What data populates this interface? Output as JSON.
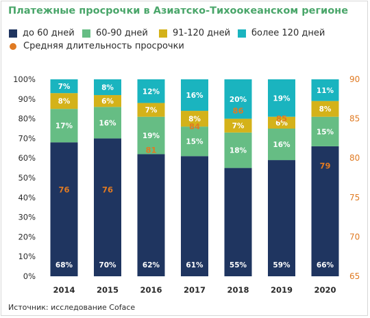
{
  "title": "Платежные просрочки в Азиатско-Тихоокеанском регионе",
  "source": "Источник: исследование Coface",
  "chart_data": {
    "type": "bar",
    "stacked": true,
    "title": "Платежные просрочки в Азиатско-Тихоокеанском регионе",
    "categories": [
      "2014",
      "2015",
      "2016",
      "2017",
      "2018",
      "2019",
      "2020"
    ],
    "series": [
      {
        "name": "до 60 дней",
        "color": "#1f3560",
        "values": [
          68,
          70,
          62,
          61,
          55,
          59,
          66
        ],
        "labels": [
          "68%",
          "70%",
          "62%",
          "61%",
          "55%",
          "59%",
          "66%"
        ]
      },
      {
        "name": "60-90 дней",
        "color": "#66bd84",
        "values": [
          17,
          16,
          19,
          15,
          18,
          16,
          15
        ],
        "labels": [
          "17%",
          "16%",
          "19%",
          "15%",
          "18%",
          "16%",
          "15%"
        ]
      },
      {
        "name": "91-120 дней",
        "color": "#d4b21a",
        "values": [
          8,
          6,
          7,
          8,
          7,
          6,
          8
        ],
        "labels": [
          "8%",
          "6%",
          "7%",
          "8%",
          "7%",
          "6%",
          "8%"
        ]
      },
      {
        "name": "более 120 дней",
        "color": "#1ab4bf",
        "values": [
          7,
          8,
          12,
          16,
          20,
          19,
          11
        ],
        "labels": [
          "7%",
          "8%",
          "12%",
          "16%",
          "20%",
          "19%",
          "11%"
        ]
      }
    ],
    "line_series": {
      "name": "Средняя длительность просрочки",
      "color": "#e07a22",
      "axis": "right",
      "values": [
        76,
        76,
        81,
        84,
        86,
        85,
        79
      ]
    },
    "ylim": [
      0,
      100
    ],
    "yticks": [
      "0%",
      "10%",
      "20%",
      "30%",
      "40%",
      "50%",
      "60%",
      "70%",
      "80%",
      "90%",
      "100%"
    ],
    "y2lim": [
      65,
      90
    ],
    "y2ticks": [
      "65",
      "70",
      "75",
      "80",
      "85",
      "90"
    ],
    "grid": false,
    "legend_position": "top-left"
  }
}
